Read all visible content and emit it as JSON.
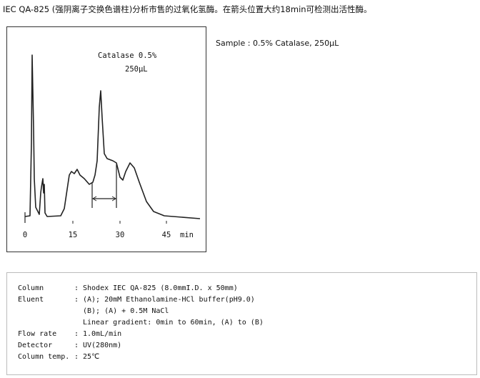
{
  "header": {
    "title": "IEC QA-825 (强阴离子交换色谱柱)分析市售的过氧化氢酶。在箭头位置大约18min可检测出活性酶。"
  },
  "figure": {
    "annotations": [
      "Catalase 0.5%",
      "250μL"
    ],
    "xticks": [
      0,
      15,
      30,
      45
    ],
    "x_unit": "min"
  },
  "sample": "Sample : 0.5% Catalase, 250μL",
  "conditions": {
    "separator": ":",
    "rows": [
      {
        "label": "Column",
        "lines": [
          "Shodex IEC QA-825 (8.0mmI.D. x 50mm)"
        ]
      },
      {
        "label": "Eluent",
        "lines": [
          "(A); 20mM Ethanolamine-HCl buffer(pH9.0)",
          "(B); (A) + 0.5M NaCl",
          "Linear gradient: 0min to 60min, (A) to (B)"
        ]
      },
      {
        "label": "Flow rate",
        "lines": [
          "1.0mL/min"
        ]
      },
      {
        "label": "Detector",
        "lines": [
          "UV(280nm)"
        ]
      },
      {
        "label": "Column temp.",
        "lines": [
          "25℃"
        ]
      }
    ]
  }
}
